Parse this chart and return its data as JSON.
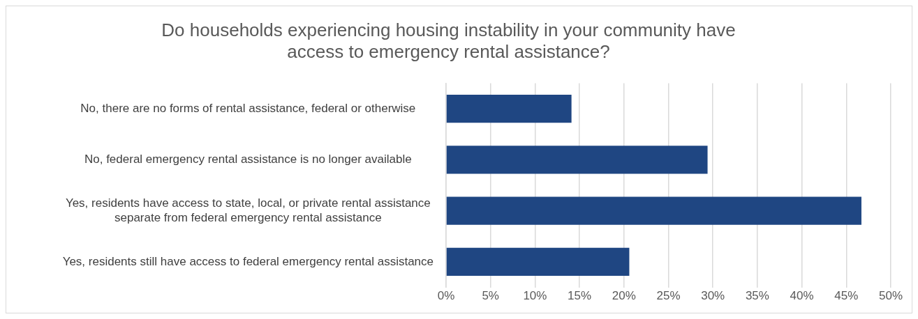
{
  "chart_data": {
    "type": "bar",
    "orientation": "horizontal",
    "title": "Do households experiencing housing instability in your community have access to emergency rental assistance?",
    "categories": [
      "No, there are no forms of rental assistance, federal or otherwise",
      "No, federal emergency rental assistance is no longer available",
      "Yes, residents have access to state, local, or private rental assistance separate from federal emergency rental assistance",
      "Yes, residents still have access to federal emergency rental assistance"
    ],
    "values": [
      14.1,
      29.4,
      46.7,
      20.6
    ],
    "color": "#1f4682",
    "xlim": [
      0,
      50
    ],
    "xticks": [
      {
        "value": 0,
        "label": "0%"
      },
      {
        "value": 5,
        "label": "5%"
      },
      {
        "value": 10,
        "label": "10%"
      },
      {
        "value": 15,
        "label": "15%"
      },
      {
        "value": 20,
        "label": "20%"
      },
      {
        "value": 25,
        "label": "25%"
      },
      {
        "value": 30,
        "label": "30%"
      },
      {
        "value": 35,
        "label": "35%"
      },
      {
        "value": 40,
        "label": "40%"
      },
      {
        "value": 45,
        "label": "45%"
      },
      {
        "value": 50,
        "label": "50%"
      }
    ],
    "grid": "x",
    "legend": false
  }
}
